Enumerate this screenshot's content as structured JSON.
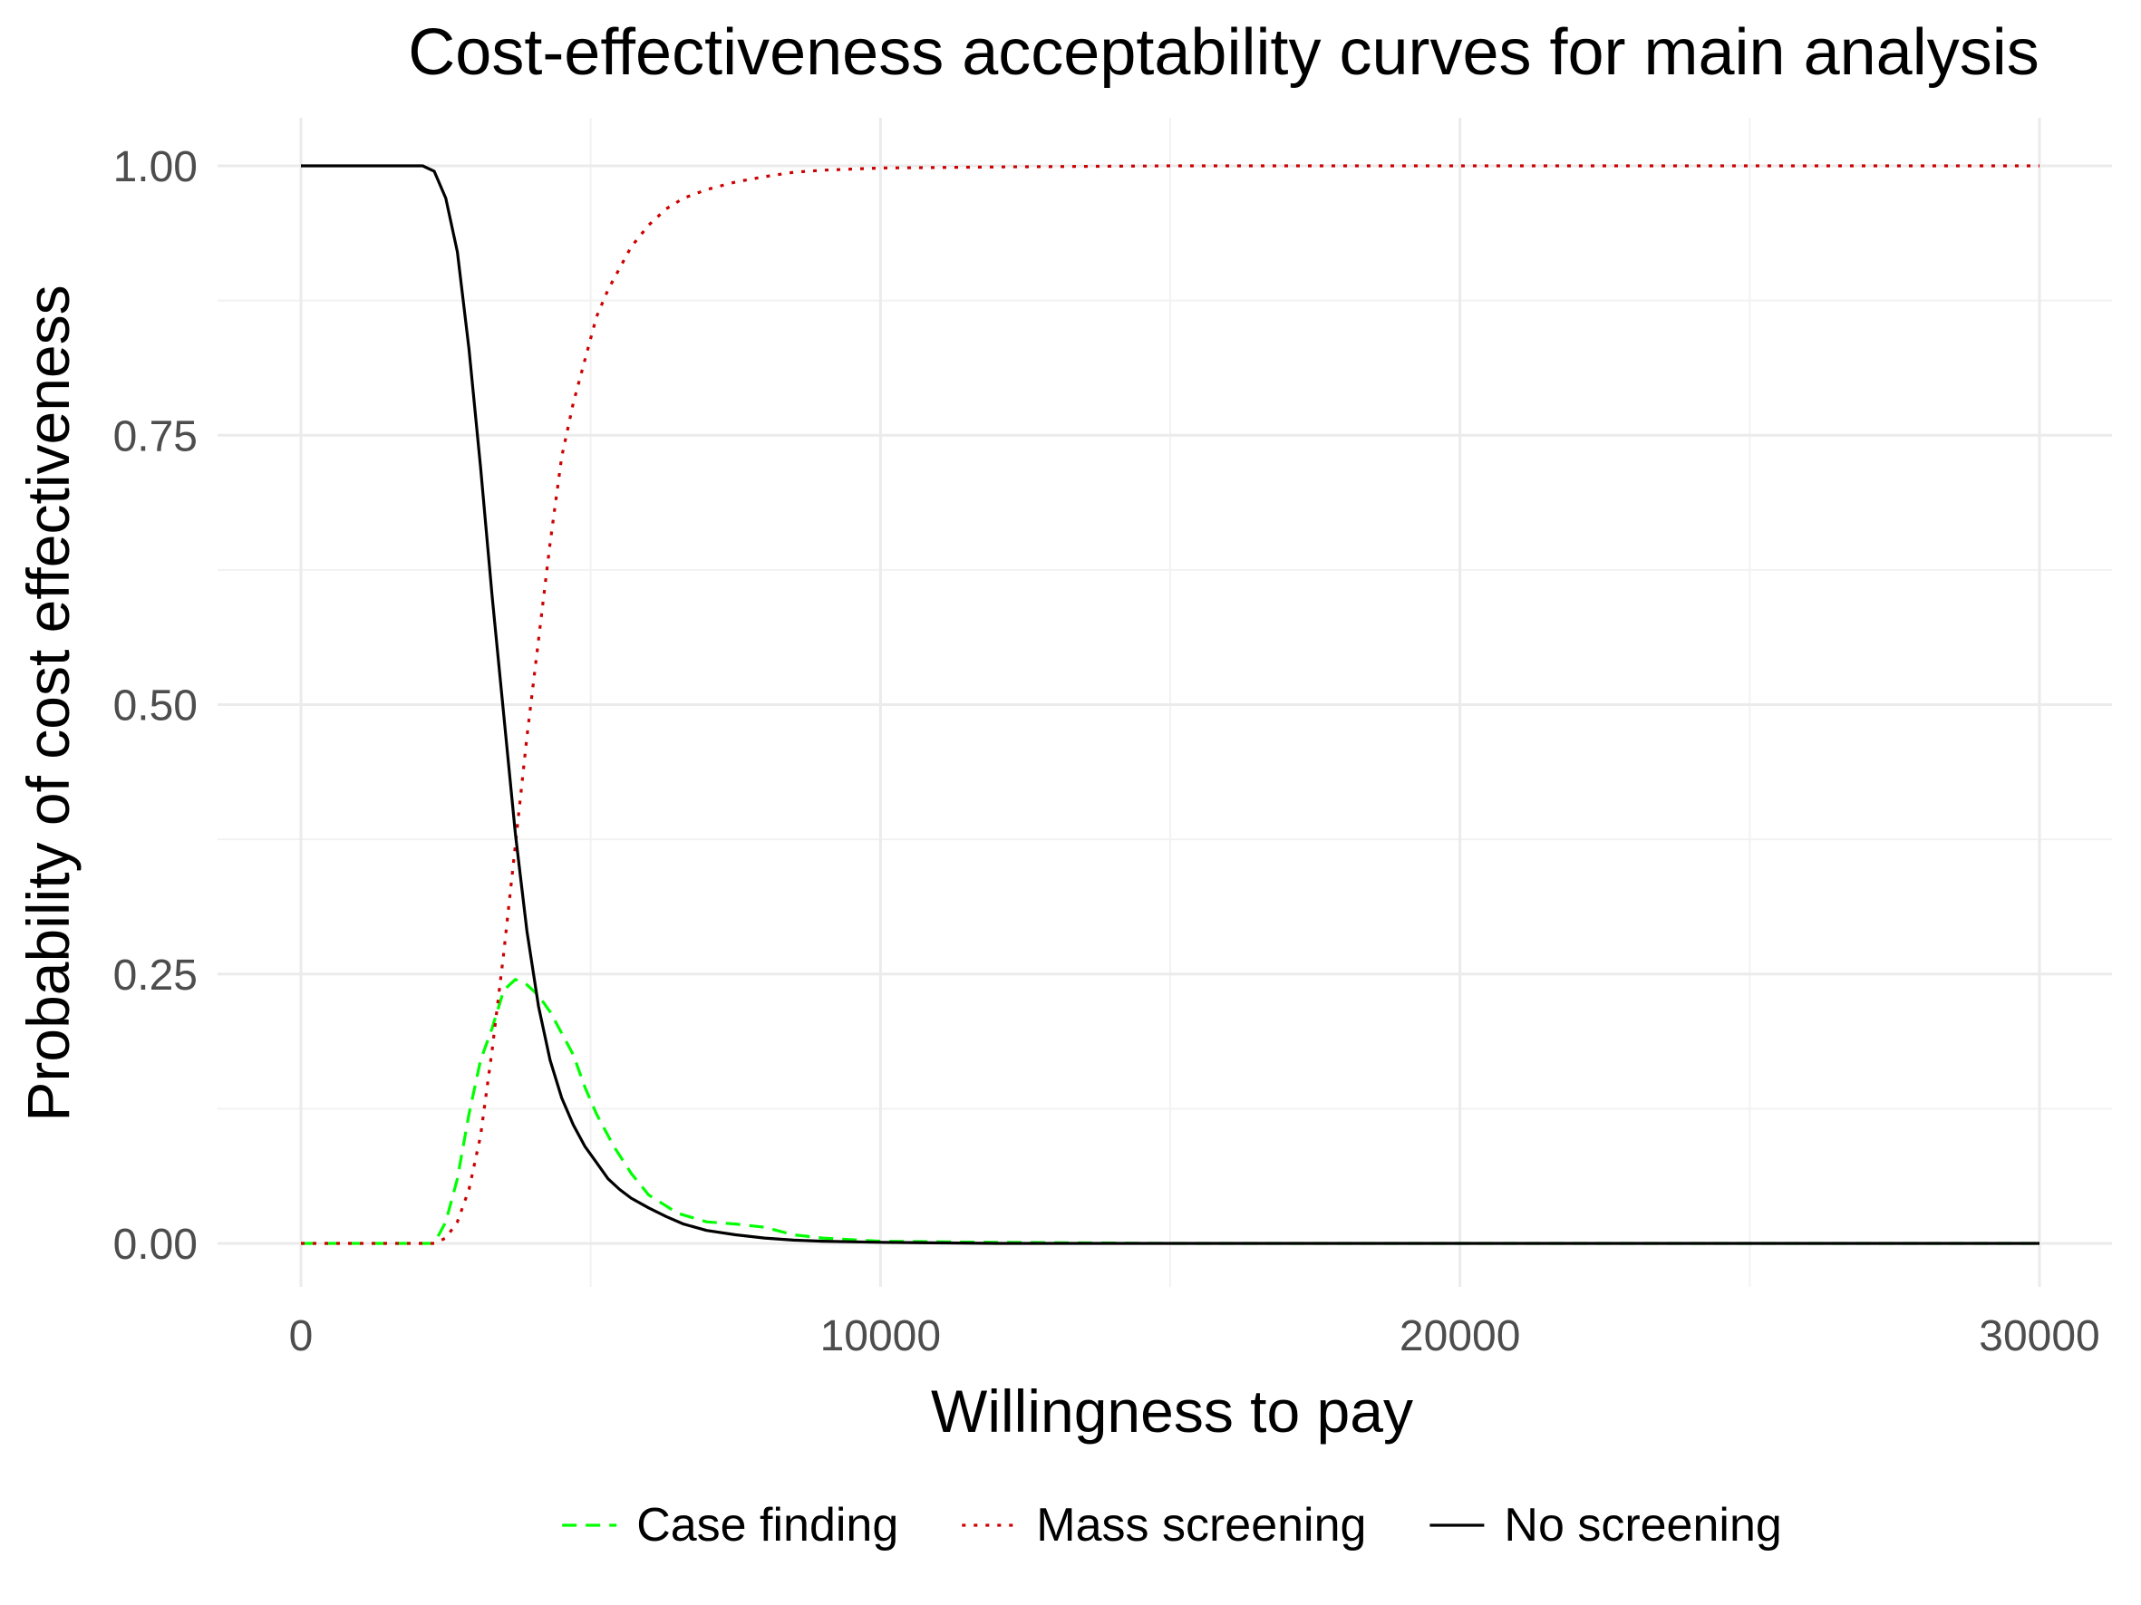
{
  "chart_data": {
    "type": "line",
    "title": "Cost-effectiveness acceptability curves for main analysis",
    "xlabel": "Willingness to pay",
    "ylabel": "Probability of cost effectiveness",
    "xlim": [
      0,
      30000
    ],
    "ylim": [
      0,
      1
    ],
    "x_ticks": [
      0,
      10000,
      20000,
      30000
    ],
    "x_tick_labels": [
      "0",
      "10000",
      "20000",
      "30000"
    ],
    "y_ticks": [
      0,
      0.25,
      0.5,
      0.75,
      1
    ],
    "y_tick_labels": [
      "0.00",
      "0.25",
      "0.50",
      "0.75",
      "1.00"
    ],
    "grid": true,
    "legend_position": "bottom",
    "series": [
      {
        "name": "Case finding",
        "color": "#00ff00",
        "style": "dashed",
        "x": [
          0,
          2300,
          2500,
          2700,
          2900,
          3100,
          3300,
          3500,
          3700,
          3900,
          4100,
          4300,
          4500,
          4700,
          4900,
          5100,
          5400,
          5700,
          6000,
          6500,
          7000,
          7500,
          8000,
          8500,
          9000,
          10000,
          12000,
          15000,
          20000,
          30000
        ],
        "y": [
          0,
          0,
          0.02,
          0.06,
          0.12,
          0.17,
          0.2,
          0.235,
          0.245,
          0.24,
          0.23,
          0.215,
          0.195,
          0.175,
          0.145,
          0.12,
          0.09,
          0.065,
          0.045,
          0.028,
          0.02,
          0.018,
          0.015,
          0.008,
          0.005,
          0.002,
          0.001,
          0,
          0,
          0
        ]
      },
      {
        "name": "Mass screening",
        "color": "#cc0000",
        "style": "dotted",
        "x": [
          0,
          2300,
          2500,
          2700,
          2900,
          3100,
          3300,
          3500,
          3700,
          3900,
          4100,
          4300,
          4500,
          4700,
          4900,
          5100,
          5300,
          5500,
          5700,
          6000,
          6300,
          6600,
          7000,
          7500,
          8000,
          8500,
          9000,
          10000,
          12000,
          15000,
          20000,
          30000
        ],
        "y": [
          0,
          0,
          0.005,
          0.02,
          0.05,
          0.1,
          0.18,
          0.27,
          0.37,
          0.47,
          0.56,
          0.65,
          0.73,
          0.78,
          0.82,
          0.86,
          0.885,
          0.905,
          0.925,
          0.945,
          0.96,
          0.97,
          0.978,
          0.985,
          0.99,
          0.994,
          0.996,
          0.998,
          0.999,
          1,
          1,
          1
        ]
      },
      {
        "name": "No screening",
        "color": "#000000",
        "style": "solid",
        "x": [
          0,
          2100,
          2300,
          2500,
          2700,
          2900,
          3100,
          3300,
          3500,
          3700,
          3900,
          4100,
          4300,
          4500,
          4700,
          4900,
          5100,
          5300,
          5500,
          5700,
          6000,
          6300,
          6600,
          7000,
          7500,
          8000,
          8500,
          9000,
          10000,
          12000,
          15000,
          20000,
          30000
        ],
        "y": [
          1,
          1,
          0.995,
          0.97,
          0.92,
          0.83,
          0.72,
          0.6,
          0.49,
          0.38,
          0.29,
          0.22,
          0.17,
          0.135,
          0.11,
          0.09,
          0.075,
          0.06,
          0.05,
          0.042,
          0.033,
          0.025,
          0.018,
          0.012,
          0.008,
          0.005,
          0.003,
          0.002,
          0.001,
          0,
          0,
          0,
          0
        ]
      }
    ]
  }
}
